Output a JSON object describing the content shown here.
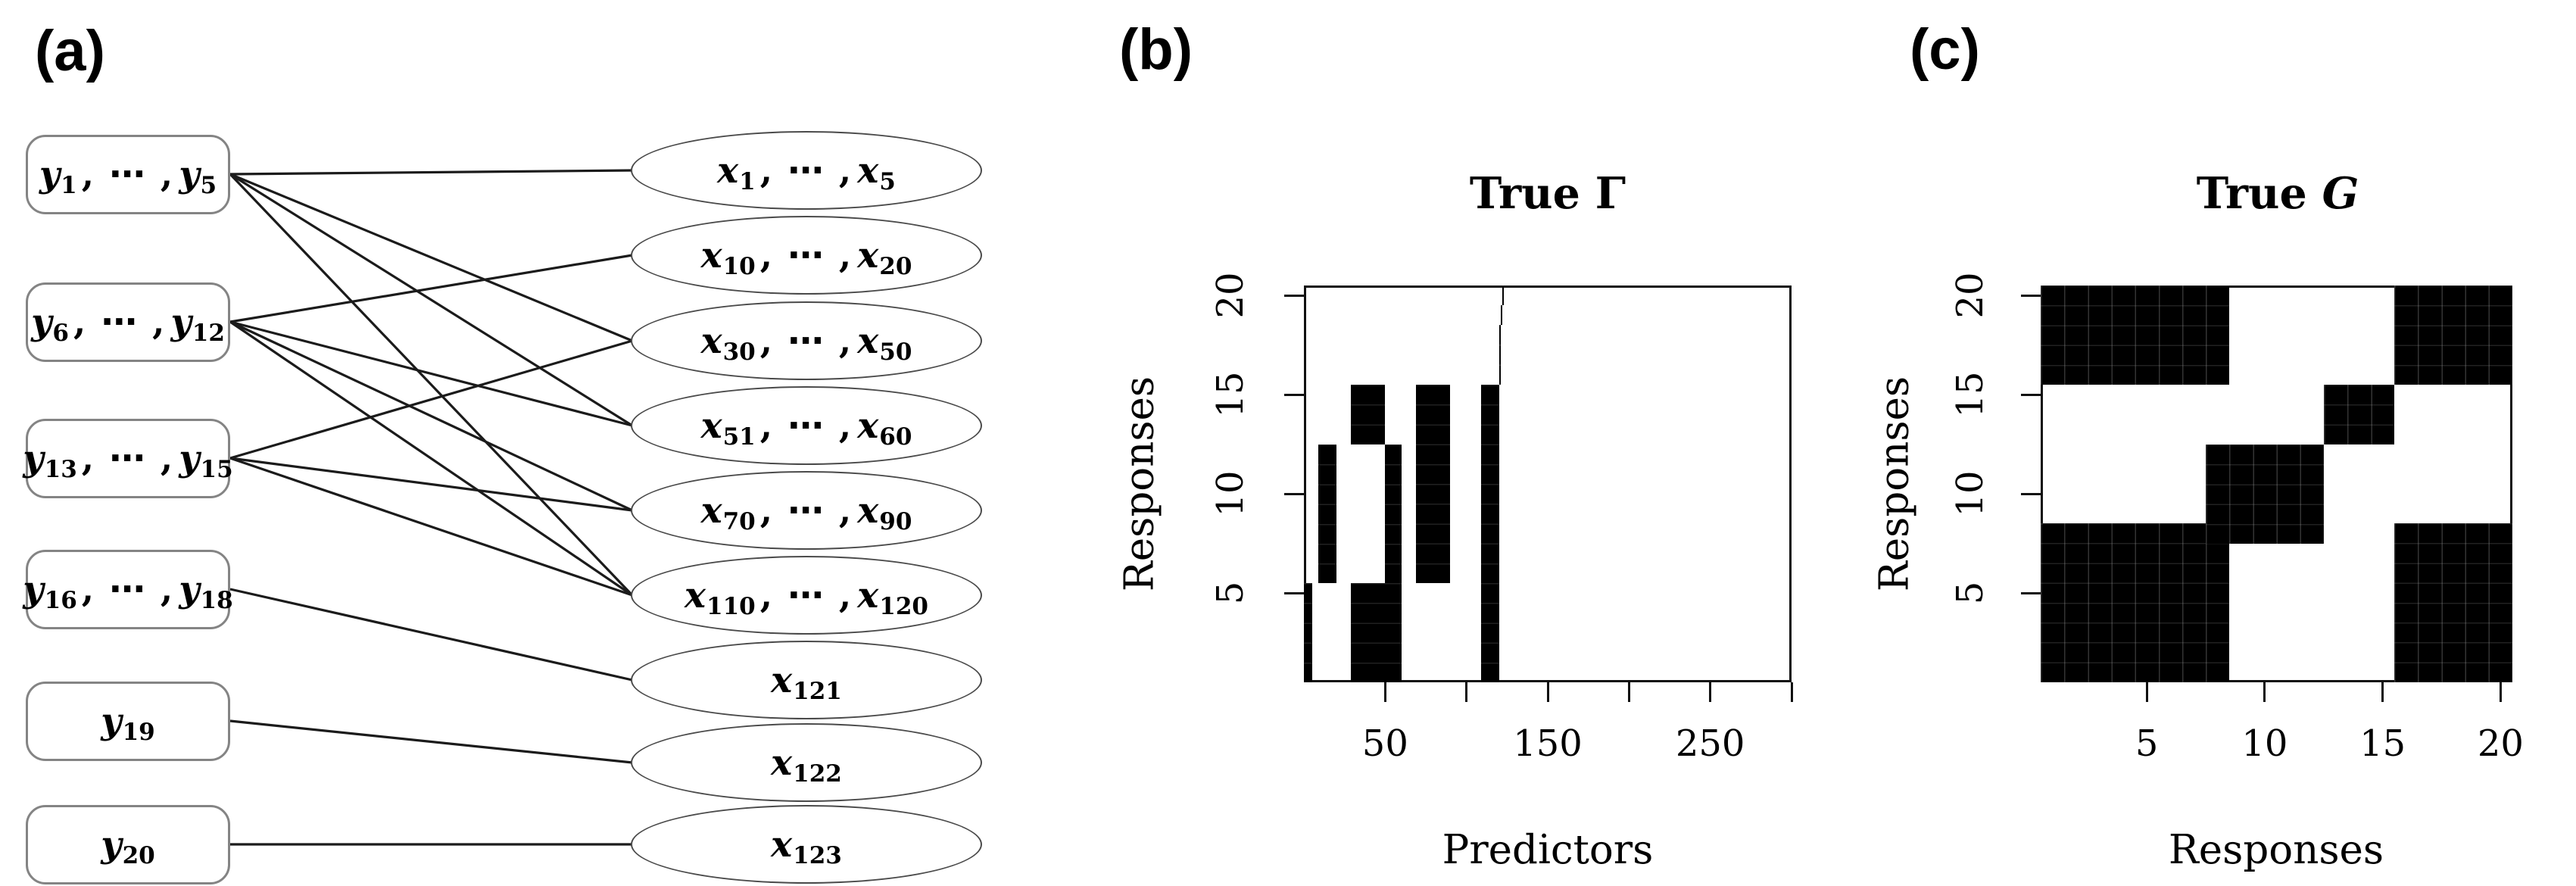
{
  "panels": {
    "a_label": "(a)",
    "b_label": "(b)",
    "c_label": "(c)"
  },
  "diagram": {
    "separator": ", ⋯ ,",
    "left_nodes": [
      {
        "id": "y1_5",
        "var": "y",
        "sub_from": "1",
        "sub_to": "5"
      },
      {
        "id": "y6_12",
        "var": "y",
        "sub_from": "6",
        "sub_to": "12"
      },
      {
        "id": "y13_15",
        "var": "y",
        "sub_from": "13",
        "sub_to": "15"
      },
      {
        "id": "y16_18",
        "var": "y",
        "sub_from": "16",
        "sub_to": "18"
      },
      {
        "id": "y19",
        "var": "y",
        "sub_from": "19",
        "sub_to": null
      },
      {
        "id": "y20",
        "var": "y",
        "sub_from": "20",
        "sub_to": null
      }
    ],
    "right_nodes": [
      {
        "id": "x1_5",
        "var": "x",
        "sub_from": "1",
        "sub_to": "5"
      },
      {
        "id": "x10_20",
        "var": "x",
        "sub_from": "10",
        "sub_to": "20"
      },
      {
        "id": "x30_50",
        "var": "x",
        "sub_from": "30",
        "sub_to": "50"
      },
      {
        "id": "x51_60",
        "var": "x",
        "sub_from": "51",
        "sub_to": "60"
      },
      {
        "id": "x70_90",
        "var": "x",
        "sub_from": "70",
        "sub_to": "90"
      },
      {
        "id": "x110_120",
        "var": "x",
        "sub_from": "110",
        "sub_to": "120"
      },
      {
        "id": "x121",
        "var": "x",
        "sub_from": "121",
        "sub_to": null
      },
      {
        "id": "x122",
        "var": "x",
        "sub_from": "122",
        "sub_to": null
      },
      {
        "id": "x123",
        "var": "x",
        "sub_from": "123",
        "sub_to": null
      }
    ],
    "edges": [
      [
        "y1_5",
        "x1_5"
      ],
      [
        "y1_5",
        "x30_50"
      ],
      [
        "y1_5",
        "x51_60"
      ],
      [
        "y1_5",
        "x110_120"
      ],
      [
        "y6_12",
        "x10_20"
      ],
      [
        "y6_12",
        "x51_60"
      ],
      [
        "y6_12",
        "x70_90"
      ],
      [
        "y6_12",
        "x110_120"
      ],
      [
        "y13_15",
        "x30_50"
      ],
      [
        "y13_15",
        "x70_90"
      ],
      [
        "y13_15",
        "x110_120"
      ],
      [
        "y16_18",
        "x121"
      ],
      [
        "y19",
        "x122"
      ],
      [
        "y20",
        "x123"
      ]
    ]
  },
  "chart_data": [
    {
      "id": "true_gamma",
      "type": "heatmap",
      "title": "True Γ",
      "xlabel": "Predictors",
      "ylabel": "Responses",
      "x_range": [
        0,
        300
      ],
      "y_range": [
        0.5,
        20.5
      ],
      "x_cell_mode": "unit0",
      "x_ticks": [
        {
          "value": 50,
          "label": "50"
        },
        {
          "value": 100,
          "label": ""
        },
        {
          "value": 150,
          "label": "150"
        },
        {
          "value": 200,
          "label": ""
        },
        {
          "value": 250,
          "label": "250"
        },
        {
          "value": 300,
          "label": ""
        }
      ],
      "y_ticks": [
        {
          "value": 5,
          "label": "5"
        },
        {
          "value": 10,
          "label": "10"
        },
        {
          "value": 15,
          "label": "15"
        },
        {
          "value": 20,
          "label": "20"
        }
      ],
      "on_color": "#000000",
      "off_color": "#ffffff",
      "blocks": [
        {
          "x": [
            1,
            5
          ],
          "y": [
            1,
            5
          ]
        },
        {
          "x": [
            10,
            20
          ],
          "y": [
            6,
            12
          ]
        },
        {
          "x": [
            30,
            60
          ],
          "y": [
            1,
            5
          ]
        },
        {
          "x": [
            30,
            50
          ],
          "y": [
            13,
            15
          ]
        },
        {
          "x": [
            51,
            60
          ],
          "y": [
            6,
            12
          ]
        },
        {
          "x": [
            70,
            90
          ],
          "y": [
            6,
            15
          ]
        },
        {
          "x": [
            110,
            120
          ],
          "y": [
            1,
            15
          ]
        },
        {
          "x": [
            121,
            121
          ],
          "y": [
            16,
            18
          ]
        },
        {
          "x": [
            122,
            122
          ],
          "y": [
            19,
            19
          ]
        },
        {
          "x": [
            123,
            123
          ],
          "y": [
            20,
            20
          ]
        }
      ]
    },
    {
      "id": "true_graph",
      "type": "heatmap",
      "title": "True 𝒢",
      "xlabel": "Responses",
      "ylabel": "Responses",
      "x_range": [
        0.5,
        20.5
      ],
      "y_range": [
        0.5,
        20.5
      ],
      "x_cell_mode": "center",
      "x_ticks": [
        {
          "value": 5,
          "label": "5"
        },
        {
          "value": 10,
          "label": "10"
        },
        {
          "value": 15,
          "label": "15"
        },
        {
          "value": 20,
          "label": "20"
        }
      ],
      "y_ticks": [
        {
          "value": 5,
          "label": "5"
        },
        {
          "value": 10,
          "label": "10"
        },
        {
          "value": 15,
          "label": "15"
        },
        {
          "value": 20,
          "label": "20"
        }
      ],
      "on_color": "#000000",
      "off_color": "#ffffff",
      "blocks": [
        {
          "x": [
            1,
            8
          ],
          "y": [
            1,
            8
          ]
        },
        {
          "x": [
            8,
            12
          ],
          "y": [
            8,
            12
          ]
        },
        {
          "x": [
            13,
            15
          ],
          "y": [
            13,
            15
          ]
        },
        {
          "x": [
            16,
            20
          ],
          "y": [
            16,
            20
          ]
        },
        {
          "x": [
            16,
            20
          ],
          "y": [
            1,
            8
          ]
        },
        {
          "x": [
            1,
            8
          ],
          "y": [
            16,
            20
          ]
        }
      ]
    }
  ],
  "colors": {
    "ink": "#000000",
    "edge": "#1b1b1b",
    "box_node_border": "#848484",
    "ellipse_node_border": "#4a4a4a",
    "background": "#ffffff"
  }
}
